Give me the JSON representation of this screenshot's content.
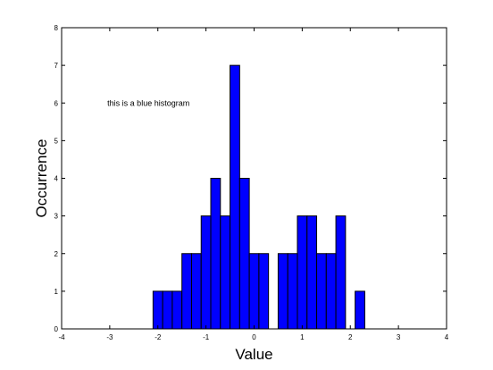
{
  "chart_data": {
    "type": "bar",
    "subtype": "histogram",
    "title": "",
    "xlabel": "Value",
    "ylabel": "Occurrence",
    "xlim": [
      -4,
      4
    ],
    "ylim": [
      0,
      8
    ],
    "x_ticks": [
      -4,
      -3,
      -2,
      -1,
      0,
      1,
      2,
      3,
      4
    ],
    "y_ticks": [
      0,
      1,
      2,
      3,
      4,
      5,
      6,
      7,
      8
    ],
    "grid": false,
    "legend": "none",
    "bar_color": "#0000ff",
    "edge_color": "#000000",
    "bin_width": 0.2,
    "bins": [
      {
        "x0": -2.1,
        "x1": -1.9,
        "count": 1
      },
      {
        "x0": -1.9,
        "x1": -1.7,
        "count": 1
      },
      {
        "x0": -1.7,
        "x1": -1.5,
        "count": 1
      },
      {
        "x0": -1.5,
        "x1": -1.3,
        "count": 2
      },
      {
        "x0": -1.3,
        "x1": -1.1,
        "count": 2
      },
      {
        "x0": -1.1,
        "x1": -0.9,
        "count": 3
      },
      {
        "x0": -0.9,
        "x1": -0.7,
        "count": 4
      },
      {
        "x0": -0.7,
        "x1": -0.5,
        "count": 3
      },
      {
        "x0": -0.5,
        "x1": -0.3,
        "count": 7
      },
      {
        "x0": -0.3,
        "x1": -0.1,
        "count": 4
      },
      {
        "x0": -0.1,
        "x1": 0.1,
        "count": 2
      },
      {
        "x0": 0.1,
        "x1": 0.3,
        "count": 2
      },
      {
        "x0": 0.3,
        "x1": 0.5,
        "count": 0
      },
      {
        "x0": 0.5,
        "x1": 0.7,
        "count": 2
      },
      {
        "x0": 0.7,
        "x1": 0.9,
        "count": 2
      },
      {
        "x0": 0.9,
        "x1": 1.1,
        "count": 3
      },
      {
        "x0": 1.1,
        "x1": 1.3,
        "count": 3
      },
      {
        "x0": 1.3,
        "x1": 1.5,
        "count": 2
      },
      {
        "x0": 1.5,
        "x1": 1.7,
        "count": 2
      },
      {
        "x0": 1.7,
        "x1": 1.9,
        "count": 3
      },
      {
        "x0": 1.9,
        "x1": 2.1,
        "count": 0
      },
      {
        "x0": 2.1,
        "x1": 2.3,
        "count": 1
      }
    ],
    "annotations": [
      {
        "text": "this is a blue histogram",
        "x": -3.05,
        "y": 6.0
      }
    ]
  }
}
